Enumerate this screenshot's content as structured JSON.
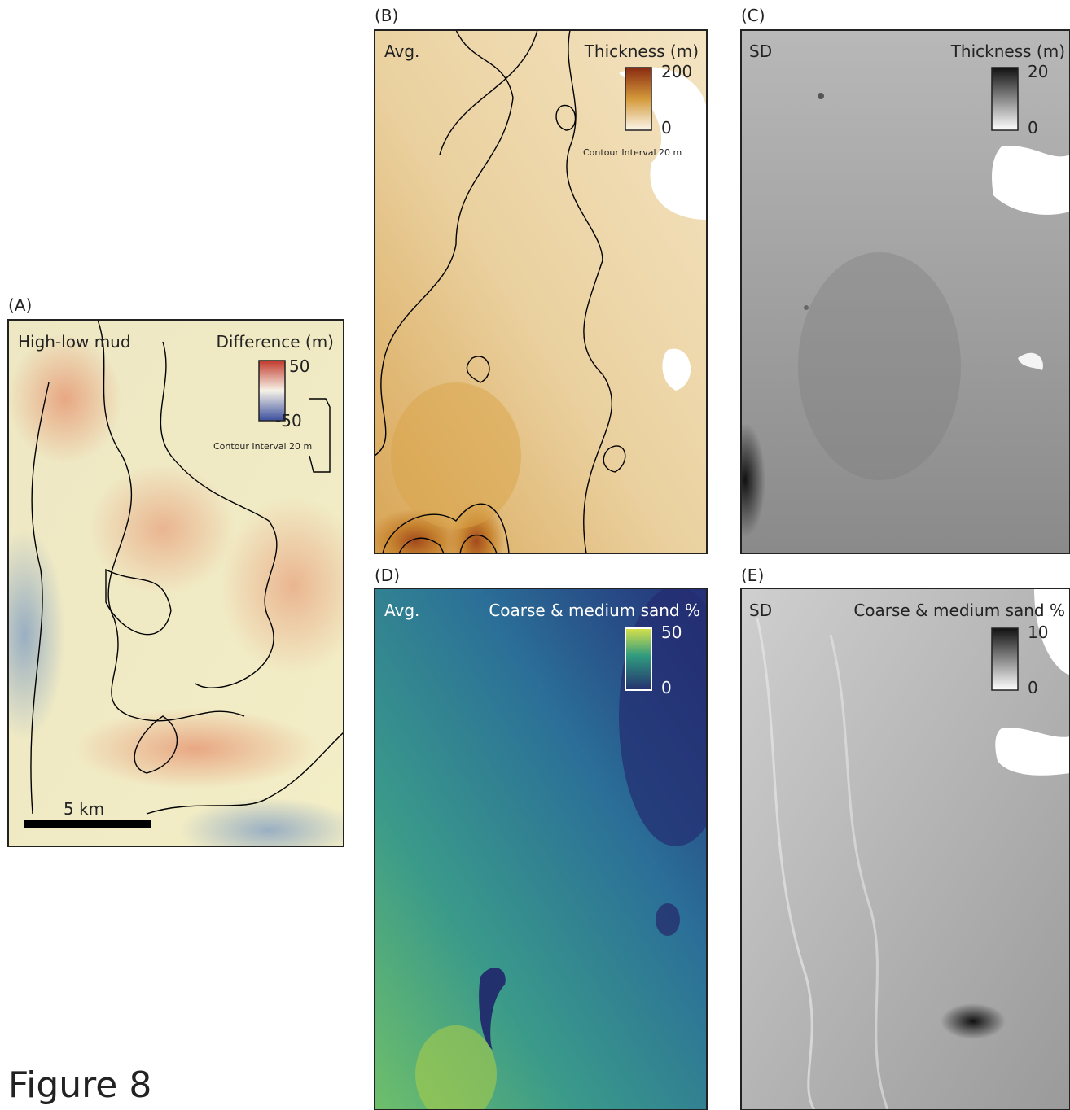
{
  "panels": [
    {
      "label": "(A)",
      "title": "High-low mud",
      "legend_title": "Difference (m)",
      "legend_max": "50",
      "legend_min": "-50",
      "contour_note": "Contour Interval 20 m",
      "scale_bar": "5 km"
    },
    {
      "label": "(B)",
      "title": "Avg.",
      "legend_title": "Thickness (m)",
      "legend_max": "200",
      "legend_min": "0",
      "contour_note": "Contour Interval 20 m"
    },
    {
      "label": "(C)",
      "title": "SD",
      "legend_title": "Thickness (m)",
      "legend_max": "20",
      "legend_min": "0"
    },
    {
      "label": "(D)",
      "title": "Avg.",
      "legend_title": "Coarse & medium sand %",
      "legend_max": "50",
      "legend_min": "0"
    },
    {
      "label": "(E)",
      "title": "SD",
      "legend_title": "Coarse & medium sand %",
      "legend_max": "10",
      "legend_min": "0"
    }
  ],
  "caption": "Figure 8"
}
